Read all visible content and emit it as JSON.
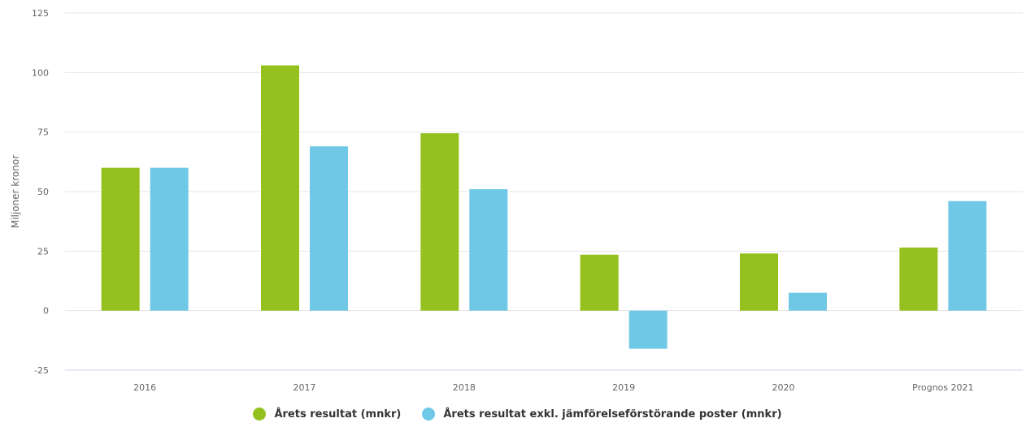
{
  "chart_data": {
    "type": "bar",
    "ylabel": "Miljoner kronor",
    "categories": [
      "2016",
      "2017",
      "2018",
      "2019",
      "2020",
      "Prognos 2021"
    ],
    "ylim": [
      -25,
      125
    ],
    "yticks": [
      -25,
      0,
      25,
      50,
      75,
      100,
      125
    ],
    "grid": true,
    "legend_position": "bottom-center",
    "series": [
      {
        "name": "Årets resultat (mnkr)",
        "color": "#95c11f",
        "values": [
          60,
          103,
          74.5,
          23.5,
          24,
          26.5
        ]
      },
      {
        "name": "Årets resultat exkl. jämförelseförstörande poster (mnkr)",
        "color": "#6fc8e6",
        "values": [
          60,
          69,
          51,
          -16,
          7.5,
          46
        ]
      }
    ]
  }
}
